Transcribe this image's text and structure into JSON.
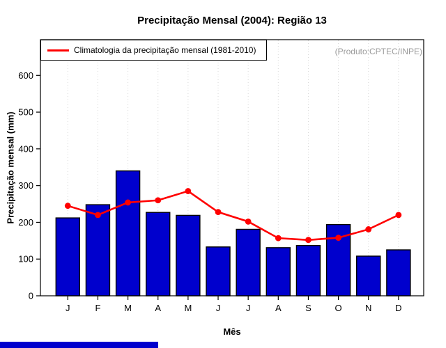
{
  "title": "Precipitação Mensal (2004): Região 13",
  "legend": {
    "label": "Climatologia da precipitação mensal (1981-2010)"
  },
  "watermark": "(Produto:CPTEC/INPE)",
  "chart_data": {
    "type": "bar",
    "title": "Precipitação Mensal (2004): Região 13",
    "xlabel": "Mês",
    "ylabel": "Precipitação mensal (mm)",
    "categories": [
      "J",
      "F",
      "M",
      "A",
      "M",
      "J",
      "J",
      "A",
      "S",
      "O",
      "N",
      "D"
    ],
    "y_ticks": [
      0,
      100,
      200,
      300,
      400,
      500,
      600
    ],
    "ylim": [
      0,
      697
    ],
    "grid": "vertical-dotted",
    "legend_position": "top-left",
    "series": [
      {
        "name": "Precipitação mensal (2004)",
        "type": "bar",
        "color": "#0000CD",
        "values": [
          212,
          248,
          340,
          227,
          219,
          133,
          181,
          131,
          137,
          194,
          108,
          125
        ]
      },
      {
        "name": "Climatologia da precipitação mensal (1981-2010)",
        "type": "line",
        "color": "#FF0000",
        "values": [
          245,
          220,
          254,
          260,
          285,
          228,
          202,
          157,
          152,
          158,
          181,
          220
        ]
      }
    ]
  },
  "colors": {
    "bar": "#0000CD",
    "bar_border": "#000000",
    "line": "#FF0000",
    "grid": "#D8D8D8",
    "watermark_text": "#9B9B9B",
    "footer_strip": "#0000CD"
  }
}
